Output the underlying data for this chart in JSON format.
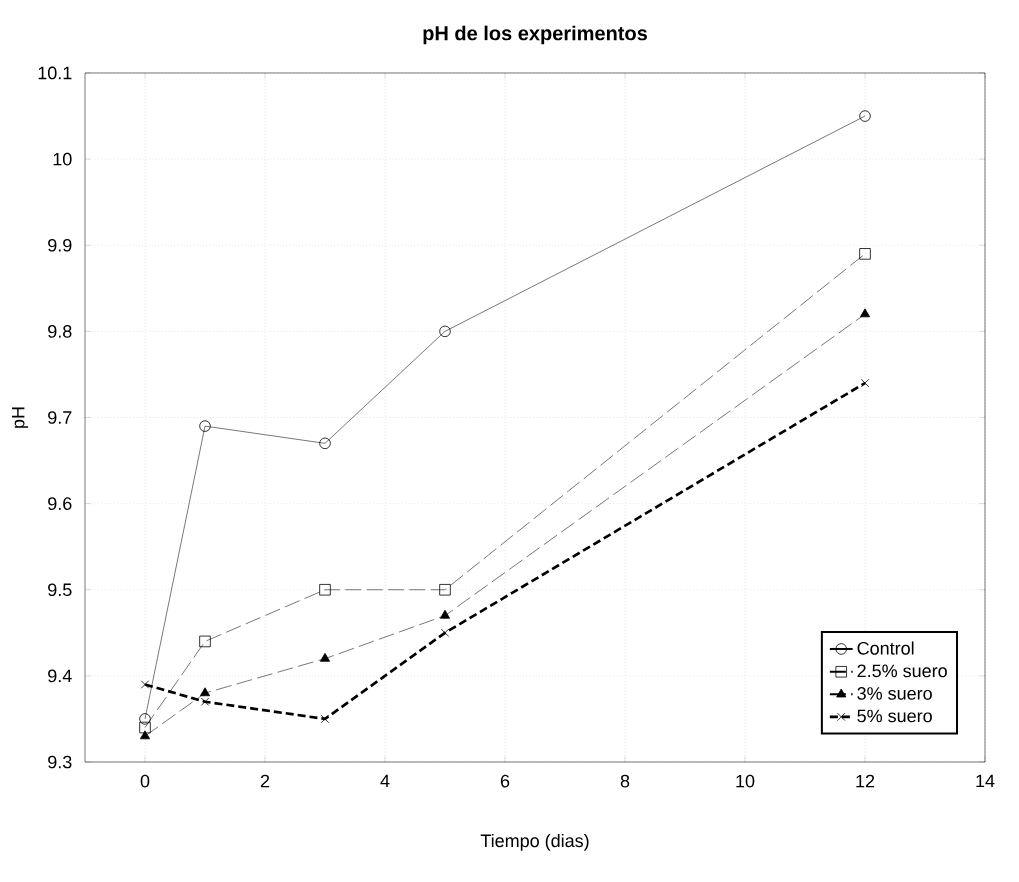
{
  "chart_data": {
    "type": "line",
    "title": "pH de los experimentos",
    "xlabel": "Tiempo (dias)",
    "ylabel": "pH",
    "x": [
      0,
      1,
      3,
      5,
      12
    ],
    "series": [
      {
        "name": "Control",
        "color": "#000000",
        "marker": "circle",
        "line_style": "solid",
        "values": [
          9.35,
          9.69,
          9.67,
          9.8,
          10.05
        ]
      },
      {
        "name": "2.5% suero",
        "color": "#000000",
        "marker": "square",
        "line_style": "dashed",
        "values": [
          9.34,
          9.44,
          9.5,
          9.5,
          9.89
        ]
      },
      {
        "name": "3% suero",
        "color": "#000000",
        "marker": "triangle",
        "line_style": "dashed",
        "values": [
          9.33,
          9.38,
          9.42,
          9.47,
          9.82
        ]
      },
      {
        "name": "5% suero",
        "color": "#000000",
        "marker": "cross",
        "line_style": "dashed",
        "values": [
          9.39,
          9.37,
          9.35,
          9.45,
          9.74
        ]
      }
    ],
    "xlim": [
      -1,
      14
    ],
    "xticks": [
      0,
      2,
      4,
      6,
      8,
      10,
      12,
      14
    ],
    "ylim": [
      9.3,
      10.1
    ],
    "yticks": [
      9.3,
      9.4,
      9.5,
      9.6,
      9.7,
      9.8,
      9.9,
      10,
      10.1
    ],
    "grid": true,
    "legend": "bottom right"
  }
}
